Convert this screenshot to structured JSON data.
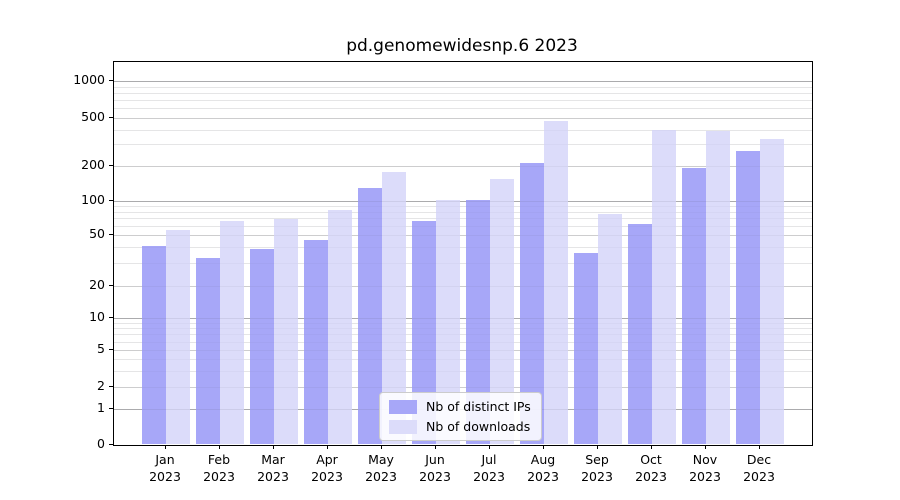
{
  "title": "pd.genomewidesnp.6 2023",
  "legend": {
    "items": [
      {
        "label": "Nb of distinct IPs",
        "color": "#a7a7f8"
      },
      {
        "label": "Nb of downloads",
        "color": "#dcdcfa"
      }
    ],
    "position": "lower center"
  },
  "axes": {
    "ytick_labels": [
      "0",
      "1",
      "2",
      "5",
      "10",
      "20",
      "50",
      "100",
      "200",
      "500",
      "1000"
    ],
    "xtick_year": "2023"
  },
  "chart_data": {
    "type": "bar",
    "title": "pd.genomewidesnp.6 2023",
    "categories": [
      "Jan",
      "Feb",
      "Mar",
      "Apr",
      "May",
      "Jun",
      "Jul",
      "Aug",
      "Sep",
      "Oct",
      "Nov",
      "Dec"
    ],
    "year": "2023",
    "series": [
      {
        "name": "Nb of distinct IPs",
        "color": "#a7a7f8",
        "values": [
          41,
          33,
          39,
          46,
          129,
          67,
          102,
          210,
          36,
          62,
          190,
          265
        ]
      },
      {
        "name": "Nb of downloads",
        "color": "#dcdcfa",
        "values": [
          55,
          67,
          69,
          83,
          175,
          101,
          155,
          470,
          76,
          400,
          390,
          335
        ]
      }
    ],
    "xlabel": "",
    "ylabel": "",
    "yscale": "symlog",
    "yticks": [
      0,
      1,
      2,
      5,
      10,
      20,
      50,
      100,
      200,
      500,
      1000
    ],
    "ylim": [
      0,
      1450
    ],
    "grid": "y-major-and-minor",
    "legend_position": "lower center"
  }
}
